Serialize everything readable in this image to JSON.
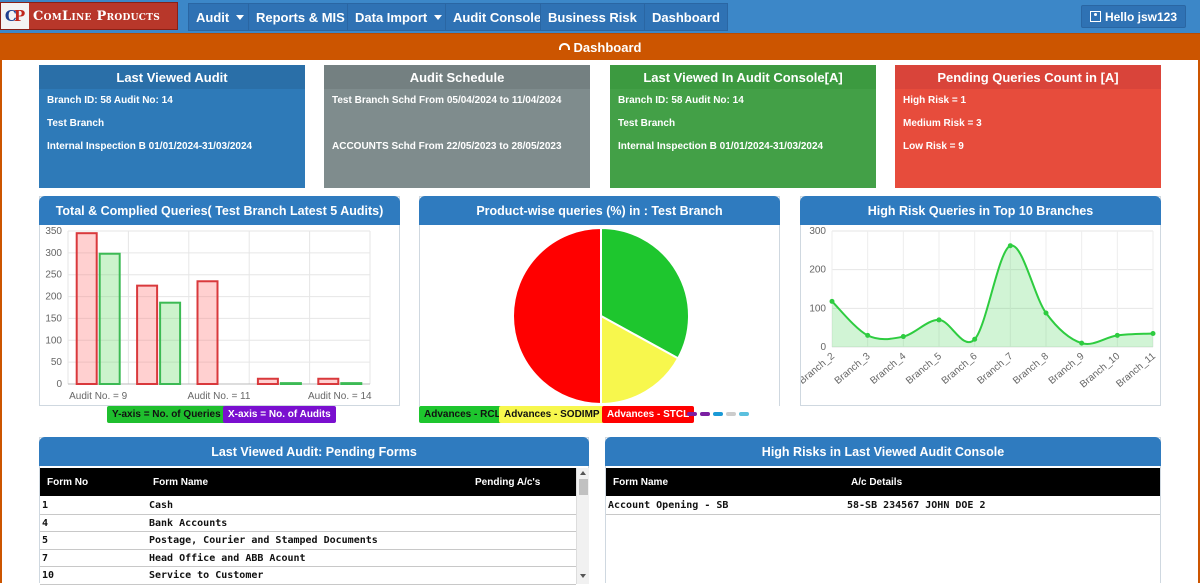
{
  "brand": {
    "mark_c": "C",
    "mark_p": "P",
    "name": "ComLine Products"
  },
  "nav": {
    "items": [
      {
        "label": "Audit",
        "dropdown": true
      },
      {
        "label": "Reports & MIS",
        "dropdown": false
      },
      {
        "label": "Data Import",
        "dropdown": true
      },
      {
        "label": "Audit Console",
        "dropdown": false
      },
      {
        "label": "Business Risk",
        "dropdown": true
      },
      {
        "label": "Dashboard",
        "dropdown": false
      }
    ],
    "user": "Hello jsw123"
  },
  "page_title": "Dashboard",
  "cards": [
    {
      "title": "Last Viewed Audit",
      "color": "#2e7ab8",
      "lines": [
        "Branch ID: 58 Audit No: 14",
        "Test Branch",
        "Internal Inspection B 01/01/2024-31/03/2024"
      ]
    },
    {
      "title": "Audit Schedule",
      "color": "#7f8c8d",
      "lines": [
        "Test Branch Schd From 05/04/2024 to 11/04/2024",
        "",
        "ACCOUNTS Schd From 22/05/2023 to 28/05/2023"
      ]
    },
    {
      "title": "Last Viewed In Audit Console[A]",
      "color": "#43a047",
      "lines": [
        "Branch ID: 58 Audit No: 14",
        "Test Branch",
        "Internal Inspection B 01/01/2024-31/03/2024"
      ]
    },
    {
      "title": "Pending Queries Count in [A]",
      "color": "#e74c3c",
      "lines": [
        "High Risk = 1",
        "Medium Risk = 3",
        "Low Risk = 9"
      ]
    }
  ],
  "chart_data": [
    {
      "type": "bar",
      "title": "Total & Complied Queries( Test Branch Latest 5 Audits)",
      "categories": [
        "Audit No. = 9",
        "",
        "Audit No. = 11",
        "",
        "Audit No. = 14"
      ],
      "series": [
        {
          "color": "#d9393c",
          "values": [
            345,
            225,
            235,
            12,
            12
          ]
        },
        {
          "color": "#3cba54",
          "values": [
            298,
            186,
            0,
            2,
            2
          ]
        }
      ],
      "ylim": [
        0,
        350
      ],
      "yticks": [
        0,
        50,
        100,
        150,
        200,
        250,
        300,
        350
      ],
      "legend": [
        {
          "label": "Y-axis = No. of Queries",
          "color": "#1fbf2e"
        },
        {
          "label": "X-axis = No. of Audits",
          "color": "#7a0fcf"
        }
      ]
    },
    {
      "type": "pie",
      "title": "Product-wise queries (%) in : Test Branch",
      "slices": [
        {
          "label": "Advances - RCL",
          "value": 33,
          "color": "#1ec62e"
        },
        {
          "label": "Advances - SODIMP",
          "value": 17,
          "color": "#f7f74d"
        },
        {
          "label": "Advances - STCL",
          "value": 50,
          "color": "#ff0000"
        }
      ],
      "legend_more_colors": [
        "#7b1fa2",
        "#7b1fa2",
        "#1a9ad6",
        "#cccccc",
        "#5bc0de"
      ]
    },
    {
      "type": "area",
      "title": "High Risk Queries in Top 10 Branches",
      "categories": [
        "Branch_2",
        "Branch_3",
        "Branch_4",
        "Branch_5",
        "Branch_6",
        "Branch_7",
        "Branch_8",
        "Branch_9",
        "Branch_10",
        "Branch_11"
      ],
      "values": [
        118,
        30,
        27,
        70,
        20,
        262,
        88,
        10,
        30,
        35
      ],
      "ylim": [
        0,
        300
      ],
      "yticks": [
        0,
        100,
        200,
        300
      ],
      "color": "#2ecc40"
    }
  ],
  "pending_forms": {
    "title": "Last Viewed Audit: Pending Forms",
    "headers": [
      "Form No",
      "Form Name",
      "Pending A/c's"
    ],
    "rows": [
      [
        "1",
        "Cash"
      ],
      [
        "4",
        "Bank Accounts"
      ],
      [
        "5",
        "Postage, Courier and Stamped Documents"
      ],
      [
        "7",
        "Head Office and ABB Acount"
      ],
      [
        "10",
        "Service to Customer"
      ]
    ]
  },
  "high_risks": {
    "title": "High Risks in Last Viewed Audit Console",
    "headers": [
      "Form Name",
      "A/c Details"
    ],
    "rows": [
      [
        "Account Opening - SB",
        "58-SB 234567 JOHN DOE 2"
      ]
    ]
  }
}
